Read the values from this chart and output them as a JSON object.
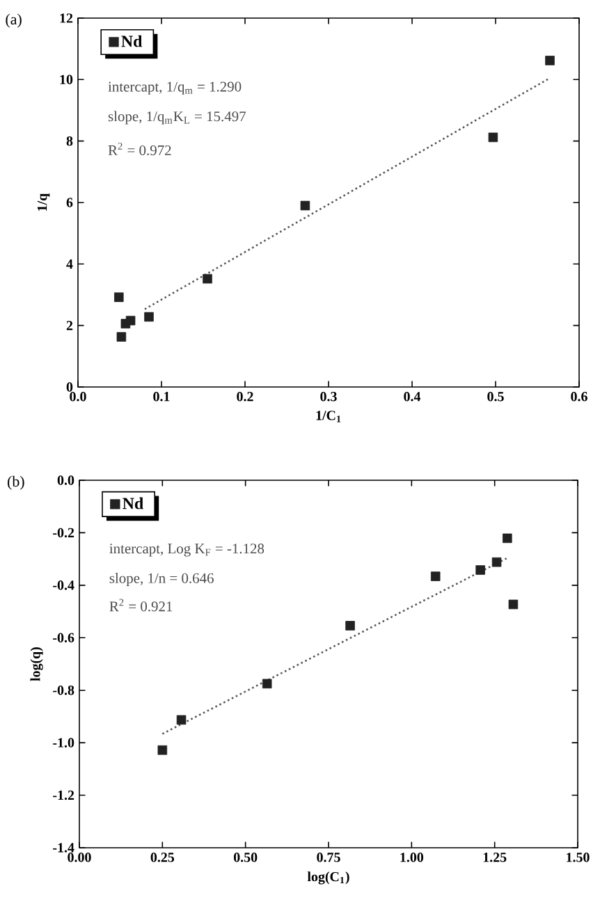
{
  "chart_data": [
    {
      "type": "scatter",
      "title": "(a)",
      "xlabel": "1/C$_{1}$",
      "ylabel": "1/q",
      "legend": "top left",
      "xlim": [
        0,
        0.6
      ],
      "ylim": [
        0,
        12
      ],
      "xticks": [
        {
          "value": 0,
          "label": "0.0"
        },
        0.1,
        0.2,
        0.3,
        0.4,
        0.5,
        0.6
      ],
      "yticks": [
        0,
        2,
        4,
        6,
        8,
        10,
        12
      ],
      "annotations": [
        "intercapt, 1/q$_{m}$ = 1.290",
        "slope, 1/q$_{m}$K$_{L}$ = 15.497",
        "R$^{2}$ = 0.972"
      ],
      "series": [
        {
          "name": "Nd",
          "marker": "square",
          "color": "#222222",
          "x": [
            0.049,
            0.052,
            0.057,
            0.063,
            0.085,
            0.155,
            0.272,
            0.497,
            0.565
          ],
          "values": [
            2.92,
            1.63,
            2.06,
            2.16,
            2.28,
            3.52,
            5.9,
            8.12,
            10.62
          ]
        },
        {
          "type": "line",
          "marker": "none",
          "line_style": "dotted",
          "color": "#555555",
          "x": [
            0.08,
            0.565
          ],
          "values": [
            2.53,
            10.05
          ]
        }
      ]
    },
    {
      "type": "scatter",
      "title": "(b)",
      "xlabel": "log(C$_{1}$)",
      "ylabel": "log(q)",
      "legend": "top left",
      "xlim": [
        0,
        1.5
      ],
      "ylim": [
        -1.4,
        0
      ],
      "xticks": [
        {
          "value": 0,
          "label": "0.00"
        },
        0.25,
        {
          "value": 0.5,
          "label": "0.50"
        },
        0.75,
        {
          "value": 1,
          "label": "1.00"
        },
        1.25,
        {
          "value": 1.5,
          "label": "1.50"
        }
      ],
      "yticks": [
        {
          "value": -1.4,
          "label": "-1.4"
        },
        {
          "value": -1.2,
          "label": "-1.2"
        },
        {
          "value": -1,
          "label": "-1.0"
        },
        {
          "value": -0.8,
          "label": "-0.8"
        },
        {
          "value": -0.6,
          "label": "-0.6"
        },
        {
          "value": -0.4,
          "label": "-0.4"
        },
        {
          "value": -0.2,
          "label": "-0.2"
        },
        {
          "value": 0,
          "label": "0.0"
        }
      ],
      "annotations": [
        "intercapt, Log K$_{F}$ = -1.128",
        "slope, 1/n = 0.646",
        "R$^{2}$ = 0.921"
      ],
      "series": [
        {
          "name": "Nd",
          "marker": "square",
          "color": "#222222",
          "x": [
            0.25,
            0.307,
            0.565,
            0.815,
            1.072,
            1.207,
            1.256,
            1.288,
            1.306
          ],
          "values": [
            -1.028,
            -0.913,
            -0.775,
            -0.554,
            -0.366,
            -0.342,
            -0.312,
            -0.221,
            -0.473
          ]
        },
        {
          "type": "line",
          "marker": "none",
          "line_style": "dotted",
          "color": "#555555",
          "x": [
            0.25,
            1.29
          ],
          "values": [
            -0.966,
            -0.295
          ]
        }
      ]
    }
  ]
}
